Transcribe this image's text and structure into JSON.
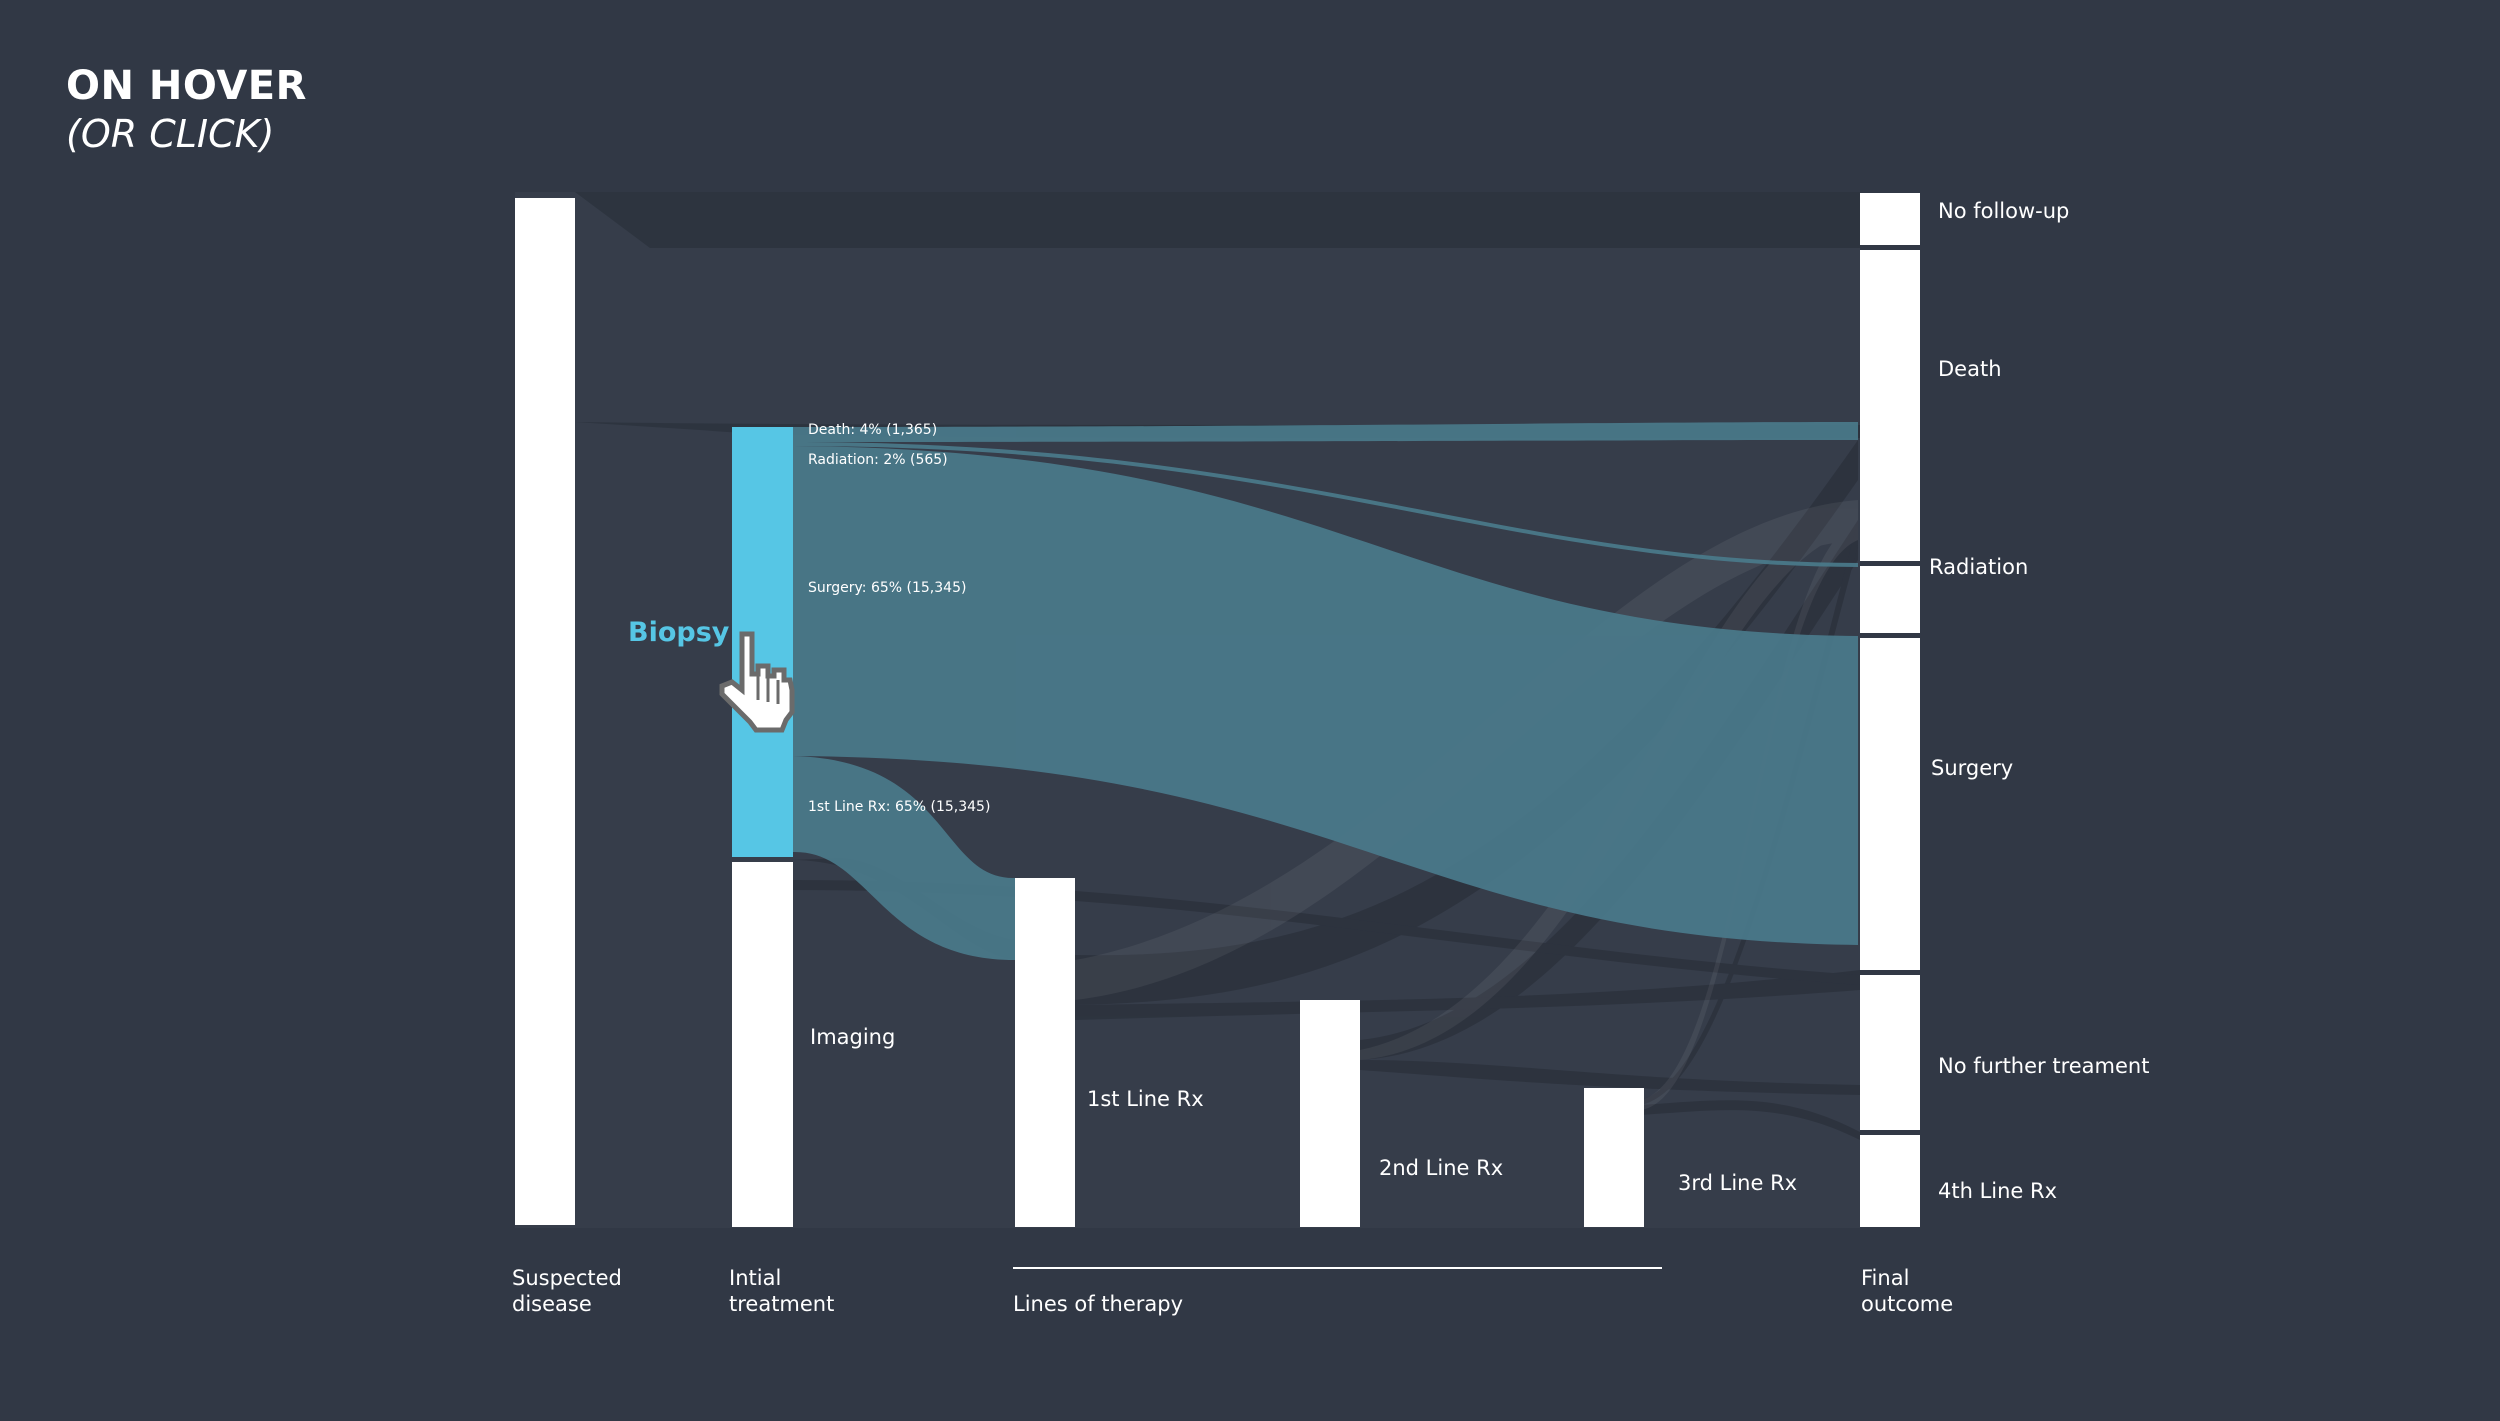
{
  "heading": {
    "title": "ON HOVER",
    "subtitle": "(OR CLICK)"
  },
  "nodes": {
    "suspected_disease": "",
    "biopsy": "Biopsy",
    "imaging": "Imaging",
    "first_line": "1st Line Rx",
    "second_line": "2nd Line Rx",
    "third_line": "3rd Line Rx",
    "no_follow_up": "No follow-up",
    "death": "Death",
    "radiation": "Radiation",
    "surgery": "Surgery",
    "no_further": "No further treament",
    "fourth_line": "4th Line Rx"
  },
  "flow_labels": {
    "death": "Death: 4% (1,365)",
    "radiation": "Radiation: 2% (565)",
    "surgery": "Surgery: 65% (15,345)",
    "first_line": "1st Line Rx: 65% (15,345)"
  },
  "columns": {
    "suspected": [
      "Suspected",
      "disease"
    ],
    "initial": [
      "Intial",
      "treatment"
    ],
    "therapy": "Lines of therapy",
    "final": [
      "Final",
      "outcome"
    ]
  },
  "colors": {
    "background": "#313845",
    "panel": "#363d4a",
    "node": "#ffffff",
    "highlight": "#56c6e5",
    "highlight_flow": "#4a7a8b"
  },
  "icons": {
    "cursor": "hand-pointer-icon"
  }
}
